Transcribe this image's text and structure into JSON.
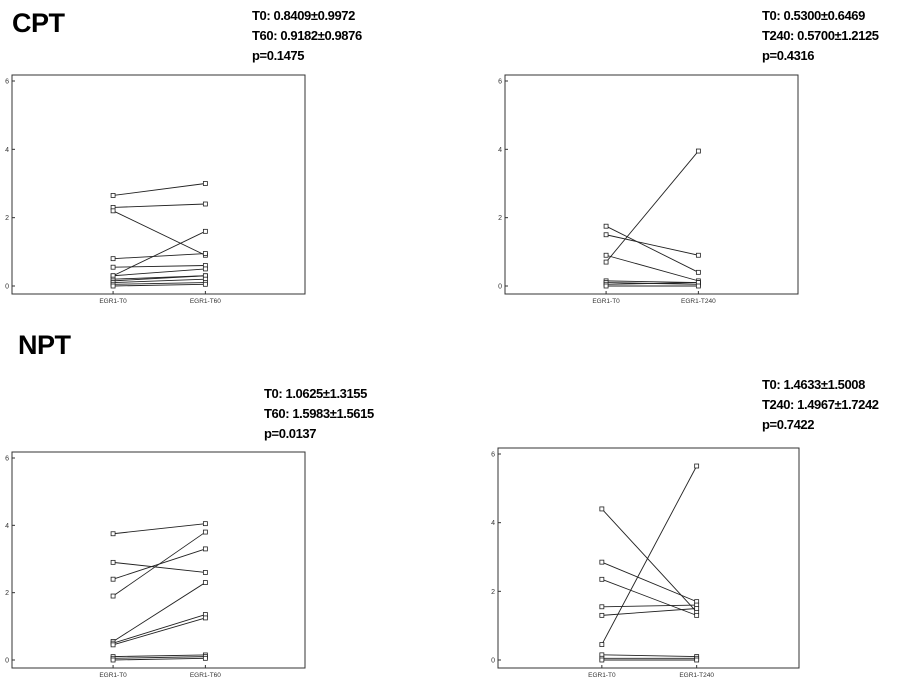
{
  "sections": {
    "cpt": "CPT",
    "npt": "NPT"
  },
  "stats": {
    "cpt_t60": [
      "T0: 0.8409±0.9972",
      "T60: 0.9182±0.9876",
      "p=0.1475"
    ],
    "cpt_t240": [
      "T0: 0.5300±0.6469",
      "T240: 0.5700±1.2125",
      "p=0.4316"
    ],
    "npt_t60": [
      "T0: 1.0625±1.3155",
      "T60: 1.5983±1.5615",
      "p=0.0137"
    ],
    "npt_t240": [
      "T0: 1.4633±1.5008",
      "T240: 1.4967±1.7242",
      "p=0.7422"
    ]
  },
  "chart_data": [
    {
      "type": "line",
      "categories": [
        "EGR1-T0",
        "EGR1-T60"
      ],
      "ylim": [
        0,
        6
      ],
      "yticks": [
        0,
        2,
        4,
        6
      ],
      "series": [
        {
          "values": [
            2.65,
            3.0
          ]
        },
        {
          "values": [
            2.3,
            2.4
          ]
        },
        {
          "values": [
            2.2,
            0.9
          ]
        },
        {
          "values": [
            0.8,
            0.95
          ]
        },
        {
          "values": [
            0.55,
            0.6
          ]
        },
        {
          "values": [
            0.3,
            1.6
          ]
        },
        {
          "values": [
            0.3,
            0.5
          ]
        },
        {
          "values": [
            0.2,
            0.3
          ]
        },
        {
          "values": [
            0.15,
            0.3
          ]
        },
        {
          "values": [
            0.1,
            0.2
          ]
        },
        {
          "values": [
            0.05,
            0.1
          ]
        },
        {
          "values": [
            0.0,
            0.05
          ]
        }
      ]
    },
    {
      "type": "line",
      "categories": [
        "EGR1-T0",
        "EGR1-T240"
      ],
      "ylim": [
        0,
        6
      ],
      "yticks": [
        0,
        2,
        4,
        6
      ],
      "series": [
        {
          "values": [
            1.75,
            0.4
          ]
        },
        {
          "values": [
            1.5,
            0.9
          ]
        },
        {
          "values": [
            0.9,
            0.15
          ]
        },
        {
          "values": [
            0.7,
            3.95
          ]
        },
        {
          "values": [
            0.15,
            0.1
          ]
        },
        {
          "values": [
            0.1,
            0.05
          ]
        },
        {
          "values": [
            0.05,
            0.1
          ]
        },
        {
          "values": [
            0.0,
            0.0
          ]
        }
      ]
    },
    {
      "type": "line",
      "categories": [
        "EGR1-T0",
        "EGR1-T60"
      ],
      "ylim": [
        0,
        6
      ],
      "yticks": [
        0,
        2,
        4,
        6
      ],
      "series": [
        {
          "values": [
            3.75,
            4.05
          ]
        },
        {
          "values": [
            2.9,
            2.6
          ]
        },
        {
          "values": [
            2.4,
            3.3
          ]
        },
        {
          "values": [
            1.9,
            3.8
          ]
        },
        {
          "values": [
            0.55,
            2.3
          ]
        },
        {
          "values": [
            0.5,
            1.35
          ]
        },
        {
          "values": [
            0.45,
            1.25
          ]
        },
        {
          "values": [
            0.1,
            0.15
          ]
        },
        {
          "values": [
            0.05,
            0.1
          ]
        },
        {
          "values": [
            0.0,
            0.05
          ]
        }
      ]
    },
    {
      "type": "line",
      "categories": [
        "EGR1-T0",
        "EGR1-T240"
      ],
      "ylim": [
        0,
        6
      ],
      "yticks": [
        0,
        2,
        4,
        6
      ],
      "series": [
        {
          "values": [
            4.4,
            1.4
          ]
        },
        {
          "values": [
            2.85,
            1.7
          ]
        },
        {
          "values": [
            2.35,
            1.3
          ]
        },
        {
          "values": [
            1.55,
            1.6
          ]
        },
        {
          "values": [
            1.3,
            1.5
          ]
        },
        {
          "values": [
            0.45,
            5.65
          ]
        },
        {
          "values": [
            0.15,
            0.1
          ]
        },
        {
          "values": [
            0.05,
            0.05
          ]
        },
        {
          "values": [
            0.0,
            0.0
          ]
        }
      ]
    }
  ]
}
